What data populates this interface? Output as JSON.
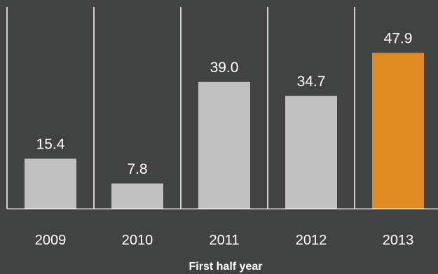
{
  "chart_data": {
    "type": "bar",
    "categories": [
      "2009",
      "2010",
      "2011",
      "2012",
      "2013"
    ],
    "values": [
      15.4,
      7.8,
      39.0,
      34.7,
      47.9
    ],
    "value_labels": [
      "15.4",
      "7.8",
      "39.0",
      "34.7",
      "47.9"
    ],
    "title": "",
    "xlabel": "First half year",
    "ylabel": "",
    "ylim": [
      0,
      62
    ],
    "grid": false,
    "colors": {
      "background": "#414342",
      "bar_default": "#c0c0c0",
      "bar_highlight": "#e08a22",
      "separator": "#ffffff",
      "text": "#ffffff"
    },
    "highlight_index": 4
  }
}
